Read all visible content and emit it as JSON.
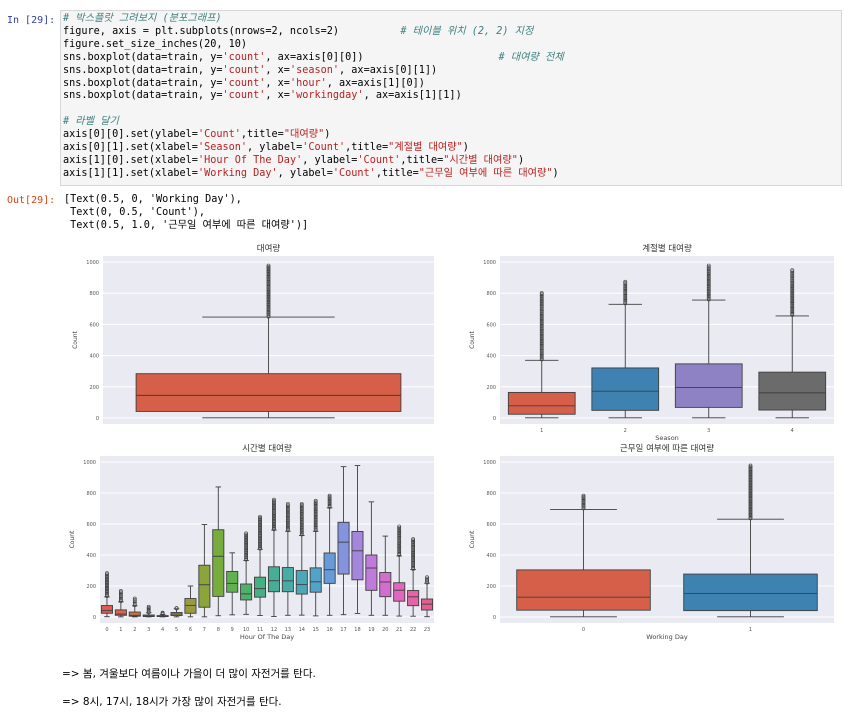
{
  "input_prompt": "In [29]:",
  "output_prompt": "Out[29]:",
  "code_lines": [
    [
      {
        "t": "# 박스플랏 그려보지 (분포그래프)",
        "c": "cm"
      }
    ],
    [
      {
        "t": "figure, axis = plt.subplots(nrows=2, ncols=2)          "
      },
      {
        "t": "# 테이블 위치 (2, 2) 지정",
        "c": "cm"
      }
    ],
    [
      {
        "t": "figure.set_size_inches(20, 10)"
      }
    ],
    [
      {
        "t": "sns.boxplot(data=train, y="
      },
      {
        "t": "'count'",
        "c": "st"
      },
      {
        "t": ", ax=axis[0][0])                      "
      },
      {
        "t": "# 대여량 전체",
        "c": "cm"
      }
    ],
    [
      {
        "t": "sns.boxplot(data=train, y="
      },
      {
        "t": "'count'",
        "c": "st"
      },
      {
        "t": ", x="
      },
      {
        "t": "'season'",
        "c": "st"
      },
      {
        "t": ", ax=axis[0][1])"
      }
    ],
    [
      {
        "t": "sns.boxplot(data=train, y="
      },
      {
        "t": "'count'",
        "c": "st"
      },
      {
        "t": ", x="
      },
      {
        "t": "'hour'",
        "c": "st"
      },
      {
        "t": ", ax=axis[1][0])"
      }
    ],
    [
      {
        "t": "sns.boxplot(data=train, y="
      },
      {
        "t": "'count'",
        "c": "st"
      },
      {
        "t": ", x="
      },
      {
        "t": "'workingday'",
        "c": "st"
      },
      {
        "t": ", ax=axis[1][1])"
      }
    ],
    [
      {
        "t": ""
      }
    ],
    [
      {
        "t": "# 라벨 달기",
        "c": "cm"
      }
    ],
    [
      {
        "t": "axis[0][0].set(ylabel="
      },
      {
        "t": "'Count'",
        "c": "st"
      },
      {
        "t": ",title="
      },
      {
        "t": "\"대여량\"",
        "c": "st"
      },
      {
        "t": ")"
      }
    ],
    [
      {
        "t": "axis[0][1].set(xlabel="
      },
      {
        "t": "'Season'",
        "c": "st"
      },
      {
        "t": ", ylabel="
      },
      {
        "t": "'Count'",
        "c": "st"
      },
      {
        "t": ",title="
      },
      {
        "t": "\"계절별 대여량\"",
        "c": "st"
      },
      {
        "t": ")"
      }
    ],
    [
      {
        "t": "axis[1][0].set(xlabel="
      },
      {
        "t": "'Hour Of The Day'",
        "c": "st"
      },
      {
        "t": ", ylabel="
      },
      {
        "t": "'Count'",
        "c": "st"
      },
      {
        "t": ",title="
      },
      {
        "t": "\"시간별 대여량\"",
        "c": "st"
      },
      {
        "t": ")"
      }
    ],
    [
      {
        "t": "axis[1][1].set(xlabel="
      },
      {
        "t": "'Working Day'",
        "c": "st"
      },
      {
        "t": ", ylabel="
      },
      {
        "t": "'Count'",
        "c": "st"
      },
      {
        "t": ",title="
      },
      {
        "t": "\"근무일 여부에 따른 대여량\"",
        "c": "st"
      },
      {
        "t": ")"
      }
    ]
  ],
  "output_lines": [
    "[Text(0.5, 0, 'Working Day'),",
    " Text(0, 0.5, 'Count'),",
    " Text(0.5, 1.0, '근무일 여부에 따른 대여량')]"
  ],
  "markdown": [
    "=> 봄, 겨울보다 여름이나 가을이 더 많이 자전거를 탄다.",
    "=> 8시, 17시, 18시가 가장 많이 자전거를 탄다."
  ],
  "colors": {
    "plot_bg": "#eaeaf2",
    "grid": "#ffffff",
    "red": "#d65f4a",
    "blue": "#3d82b0",
    "hour_palette": [
      "#dd5a56",
      "#d8664f",
      "#cf7148",
      "#c97d45",
      "#bb8942",
      "#ab9240",
      "#9a9b3e",
      "#8ba43c",
      "#76ad3d",
      "#5fb24e",
      "#4fb06c",
      "#48ae83",
      "#47ad94",
      "#49aba5",
      "#4ca8b6",
      "#52a3c8",
      "#659bd8",
      "#8592de",
      "#a487dd",
      "#c07ad9",
      "#d36ecf",
      "#df67bd",
      "#e563a7",
      "#e45f91"
    ]
  },
  "chart_data": [
    {
      "type": "box",
      "title": "대여량",
      "xlabel": "",
      "ylabel": "Count",
      "ylim": [
        0,
        1000
      ],
      "yticks": [
        0,
        200,
        400,
        600,
        800,
        1000
      ],
      "categories": [
        ""
      ],
      "boxes": [
        {
          "q1": 42,
          "median": 145,
          "q3": 284,
          "wlo": 1,
          "whi": 647,
          "fliers": [
            650,
            977
          ]
        }
      ]
    },
    {
      "type": "box",
      "title": "계절별 대여량",
      "xlabel": "Season",
      "ylabel": "Count",
      "ylim": [
        0,
        1000
      ],
      "yticks": [
        0,
        200,
        400,
        600,
        800,
        1000
      ],
      "categories": [
        "1",
        "2",
        "3",
        "4"
      ],
      "boxes": [
        {
          "q1": 24,
          "median": 78,
          "q3": 164,
          "wlo": 1,
          "whi": 370,
          "fliers": [
            375,
            801
          ]
        },
        {
          "q1": 49,
          "median": 172,
          "q3": 321,
          "wlo": 1,
          "whi": 729,
          "fliers": [
            735,
            873
          ]
        },
        {
          "q1": 68,
          "median": 195,
          "q3": 347,
          "wlo": 1,
          "whi": 756,
          "fliers": [
            760,
            977
          ]
        },
        {
          "q1": 51,
          "median": 161,
          "q3": 294,
          "wlo": 1,
          "whi": 654,
          "fliers": [
            660,
            948
          ]
        }
      ]
    },
    {
      "type": "box",
      "title": "시간별 대여량",
      "xlabel": "Hour Of The Day",
      "ylabel": "Count",
      "ylim": [
        0,
        1000
      ],
      "yticks": [
        0,
        200,
        400,
        600,
        800,
        1000
      ],
      "categories": [
        "0",
        "1",
        "2",
        "3",
        "4",
        "5",
        "6",
        "7",
        "8",
        "9",
        "10",
        "11",
        "12",
        "13",
        "14",
        "15",
        "16",
        "17",
        "18",
        "19",
        "20",
        "21",
        "22",
        "23"
      ],
      "boxes": [
        {
          "q1": 24,
          "median": 41,
          "q3": 74,
          "wlo": 2,
          "whi": 130,
          "fliers": [
            135,
            283
          ]
        },
        {
          "q1": 11,
          "median": 19,
          "q3": 46,
          "wlo": 1,
          "whi": 98,
          "fliers": [
            102,
            168
          ]
        },
        {
          "q1": 5,
          "median": 11,
          "q3": 32,
          "wlo": 1,
          "whi": 72,
          "fliers": [
            76,
            119
          ]
        },
        {
          "q1": 3,
          "median": 6,
          "q3": 13,
          "wlo": 1,
          "whi": 27,
          "fliers": [
            30,
            66
          ]
        },
        {
          "q1": 3,
          "median": 6,
          "q3": 9,
          "wlo": 1,
          "whi": 17,
          "fliers": [
            19,
            28
          ]
        },
        {
          "q1": 9,
          "median": 19,
          "q3": 29,
          "wlo": 1,
          "whi": 53,
          "fliers": [
            56,
            57
          ]
        },
        {
          "q1": 24,
          "median": 75,
          "q3": 119,
          "wlo": 1,
          "whi": 200,
          "fliers": []
        },
        {
          "q1": 63,
          "median": 208,
          "q3": 334,
          "wlo": 1,
          "whi": 597,
          "fliers": []
        },
        {
          "q1": 133,
          "median": 392,
          "q3": 563,
          "wlo": 8,
          "whi": 839,
          "fliers": []
        },
        {
          "q1": 160,
          "median": 217,
          "q3": 294,
          "wlo": 14,
          "whi": 414,
          "fliers": []
        },
        {
          "q1": 110,
          "median": 149,
          "q3": 213,
          "wlo": 17,
          "whi": 365,
          "fliers": [
            370,
            539
          ]
        },
        {
          "q1": 128,
          "median": 183,
          "q3": 257,
          "wlo": 10,
          "whi": 437,
          "fliers": [
            441,
            647
          ]
        },
        {
          "q1": 163,
          "median": 234,
          "q3": 324,
          "wlo": 3,
          "whi": 561,
          "fliers": [
            566,
            757
          ]
        },
        {
          "q1": 163,
          "median": 233,
          "q3": 319,
          "wlo": 11,
          "whi": 553,
          "fliers": [
            560,
            730
          ]
        },
        {
          "q1": 148,
          "median": 209,
          "q3": 300,
          "wlo": 12,
          "whi": 526,
          "fliers": [
            532,
            730
          ]
        },
        {
          "q1": 160,
          "median": 227,
          "q3": 317,
          "wlo": 7,
          "whi": 553,
          "fliers": [
            560,
            750
          ]
        },
        {
          "q1": 217,
          "median": 305,
          "q3": 413,
          "wlo": 11,
          "whi": 704,
          "fliers": [
            710,
            783
          ]
        },
        {
          "q1": 277,
          "median": 483,
          "q3": 611,
          "wlo": 15,
          "whi": 970,
          "fliers": []
        },
        {
          "q1": 240,
          "median": 427,
          "q3": 552,
          "wlo": 23,
          "whi": 977,
          "fliers": []
        },
        {
          "q1": 172,
          "median": 316,
          "q3": 400,
          "wlo": 11,
          "whi": 743,
          "fliers": []
        },
        {
          "q1": 131,
          "median": 226,
          "q3": 287,
          "wlo": 11,
          "whi": 522,
          "fliers": []
        },
        {
          "q1": 102,
          "median": 173,
          "q3": 221,
          "wlo": 6,
          "whi": 394,
          "fliers": [
            400,
            584
          ]
        },
        {
          "q1": 73,
          "median": 130,
          "q3": 171,
          "wlo": 5,
          "whi": 306,
          "fliers": [
            310,
            502
          ]
        },
        {
          "q1": 45,
          "median": 83,
          "q3": 116,
          "wlo": 2,
          "whi": 218,
          "fliers": [
            222,
            256
          ]
        }
      ]
    },
    {
      "type": "box",
      "title": "근무일 여부에 따른 대여량",
      "xlabel": "Working Day",
      "ylabel": "Count",
      "ylim": [
        0,
        1000
      ],
      "yticks": [
        0,
        200,
        400,
        600,
        800,
        1000
      ],
      "categories": [
        "0",
        "1"
      ],
      "boxes": [
        {
          "q1": 44,
          "median": 128,
          "q3": 304,
          "wlo": 1,
          "whi": 693,
          "fliers": [
            700,
            783
          ]
        },
        {
          "q1": 41,
          "median": 151,
          "q3": 277,
          "wlo": 1,
          "whi": 631,
          "fliers": [
            636,
            977
          ]
        }
      ]
    }
  ]
}
